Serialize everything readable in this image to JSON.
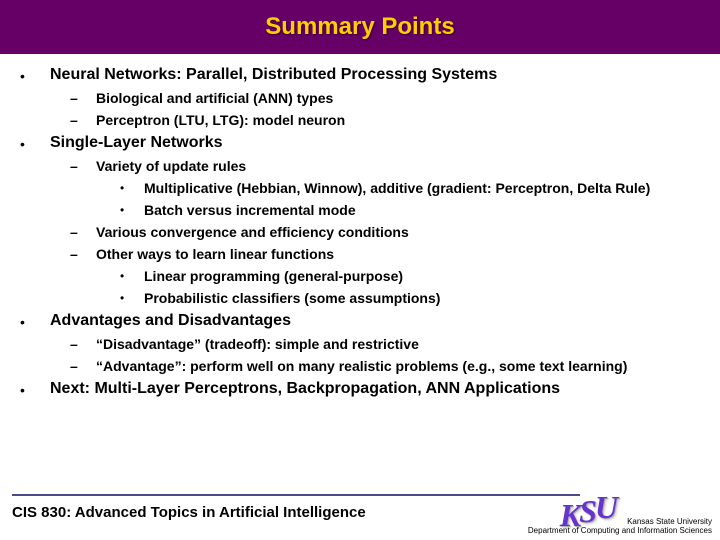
{
  "title": "Summary Points",
  "title_color": "#ffcc00",
  "title_bg": "#660066",
  "items": [
    {
      "text": "Neural Networks: Parallel, Distributed Processing Systems",
      "subs": [
        {
          "text": "Biological and artificial (ANN) types"
        },
        {
          "text": "Perceptron (LTU, LTG): model neuron"
        }
      ]
    },
    {
      "text": "Single-Layer Networks",
      "subs": [
        {
          "text": "Variety of update rules",
          "subsubs": [
            {
              "text": "Multiplicative (Hebbian, Winnow), additive (gradient: Perceptron, Delta Rule)"
            },
            {
              "text": "Batch versus incremental mode"
            }
          ]
        },
        {
          "text": "Various convergence and efficiency conditions"
        },
        {
          "text": "Other ways to learn linear functions",
          "subsubs": [
            {
              "text": "Linear programming (general-purpose)"
            },
            {
              "text": "Probabilistic classifiers (some assumptions)"
            }
          ]
        }
      ]
    },
    {
      "text": "Advantages and Disadvantages",
      "subs": [
        {
          "text": "“Disadvantage” (tradeoff): simple and restrictive"
        },
        {
          "text": "“Advantage”: perform well on many realistic problems (e.g., some text learning)"
        }
      ]
    },
    {
      "text": "Next: Multi-Layer Perceptrons, Backpropagation, ANN Applications"
    }
  ],
  "footer": {
    "course": "CIS 830: Advanced Topics in Artificial Intelligence",
    "logo": "KSU",
    "uni_line1": "Kansas State University",
    "uni_line2": "Department of Computing and Information Sciences"
  }
}
